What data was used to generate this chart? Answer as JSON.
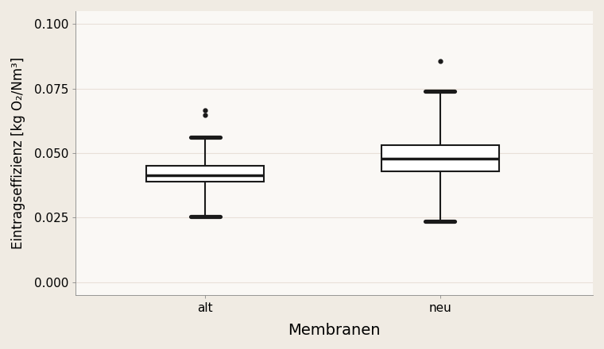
{
  "categories": [
    "alt",
    "neu"
  ],
  "xlabel": "Membranen",
  "ylabel": "Eintragseffizienz [kg O₂/Nm³]",
  "ylim": [
    -0.005,
    0.105
  ],
  "yticks": [
    0.0,
    0.025,
    0.05,
    0.075,
    0.1
  ],
  "ytick_labels": [
    "0.000",
    "0.025",
    "0.050",
    "0.075",
    "0.100"
  ],
  "panel_background": "#faf8f5",
  "outer_background": "#f0ebe3",
  "plot_background": "#faf8f5",
  "box_fill": "#ffffff",
  "line_color": "#1a1a1a",
  "grid_color": "#e8e0d8",
  "alt": {
    "q1": 0.039,
    "median": 0.0415,
    "q3": 0.045,
    "whisker_low": 0.0255,
    "whisker_high": 0.056,
    "outliers": [
      0.0648,
      0.0665
    ]
  },
  "neu": {
    "q1": 0.043,
    "median": 0.0478,
    "q3": 0.053,
    "whisker_low": 0.0235,
    "whisker_high": 0.074,
    "outliers": [
      0.0855
    ]
  },
  "box_width": 0.5,
  "linewidth": 1.5,
  "median_linewidth": 2.5,
  "xlabel_fontsize": 14,
  "ylabel_fontsize": 12,
  "tick_fontsize": 11
}
